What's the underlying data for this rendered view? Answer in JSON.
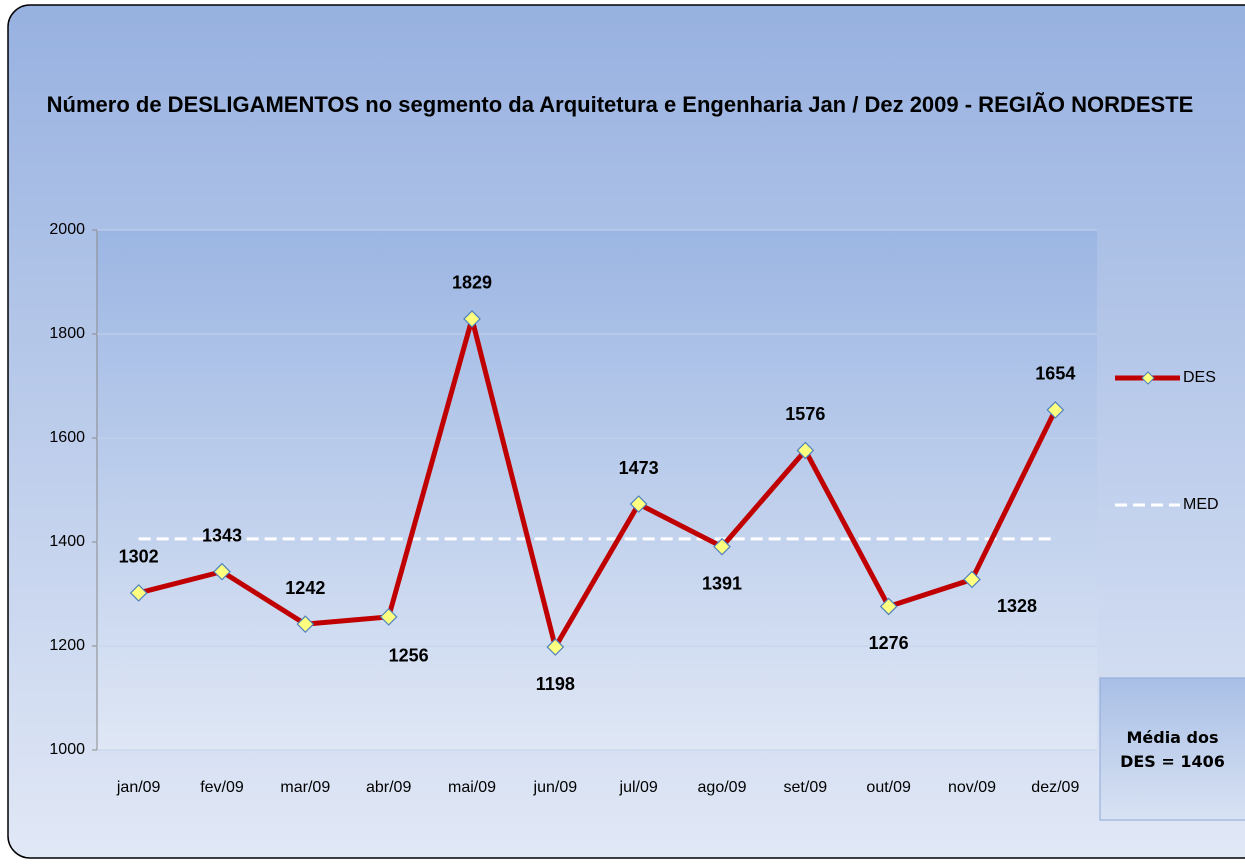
{
  "chart_data": {
    "type": "line",
    "title": "Número de DESLIGAMENTOS no segmento da Arquitetura e Engenharia Jan / Dez 2009 - REGIÃO NORDESTE",
    "categories": [
      "jan/09",
      "fev/09",
      "mar/09",
      "abr/09",
      "mai/09",
      "jun/09",
      "jul/09",
      "ago/09",
      "set/09",
      "out/09",
      "nov/09",
      "dez/09"
    ],
    "series": [
      {
        "name": "DES",
        "color": "#c00000",
        "values": [
          1302,
          1343,
          1242,
          1256,
          1829,
          1198,
          1473,
          1391,
          1576,
          1276,
          1328,
          1654
        ]
      },
      {
        "name": "MED",
        "color": "#ffffff",
        "values": [
          1406,
          1406,
          1406,
          1406,
          1406,
          1406,
          1406,
          1406,
          1406,
          1406,
          1406,
          1406
        ]
      }
    ],
    "ylim": [
      1000,
      2000
    ],
    "yticks": [
      1000,
      1200,
      1400,
      1600,
      1800,
      2000
    ],
    "grid": true,
    "legend": "right",
    "annotation": "Média dos DES = 1406"
  }
}
